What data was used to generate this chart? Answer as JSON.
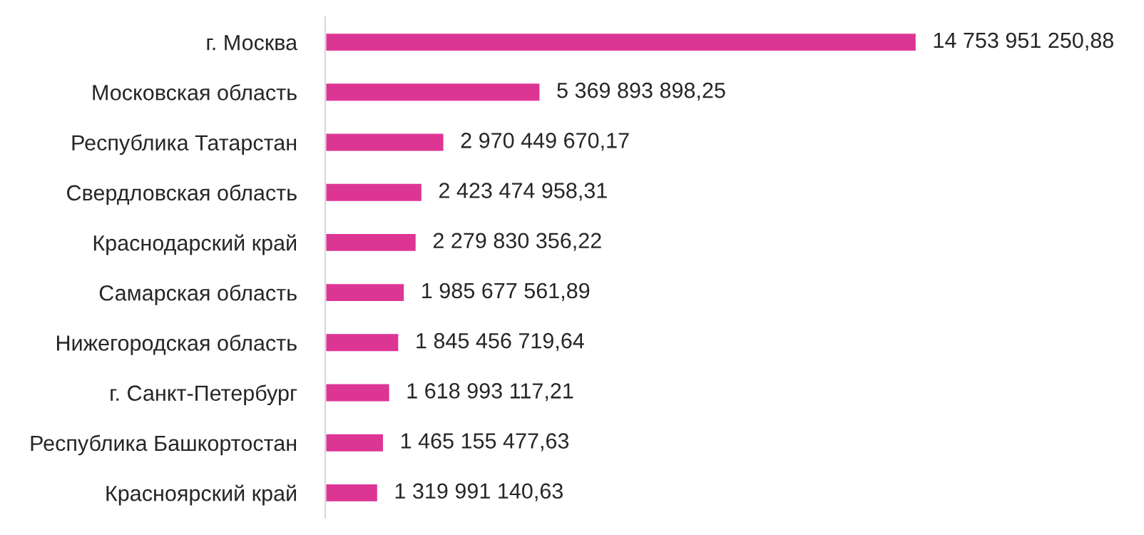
{
  "chart_data": {
    "type": "bar",
    "orientation": "horizontal",
    "categories": [
      "г. Москва",
      "Московская область",
      "Республика Татарстан",
      "Свердловская область",
      "Краснодарский край",
      "Самарская область",
      "Нижегородская область",
      "г. Санкт-Петербург",
      "Республика Башкортостан",
      "Красноярский край"
    ],
    "values": [
      14753951250.88,
      5369893898.25,
      2970449670.17,
      2423474958.31,
      2279830356.22,
      1985677561.89,
      1845456719.64,
      1618993117.21,
      1465155477.63,
      1319991140.63
    ],
    "value_labels": [
      "14 753 951 250,88",
      "5 369 893 898,25",
      "2 970 449 670,17",
      "2 423 474 958,31",
      "2 279 830 356,22",
      "1 985 677 561,89",
      "1 845 456 719,64",
      "1 618 993 117,21",
      "1 465 155 477,63",
      "1 319 991 140,63"
    ],
    "color": "#dd3594",
    "grid": false,
    "legend": false
  }
}
